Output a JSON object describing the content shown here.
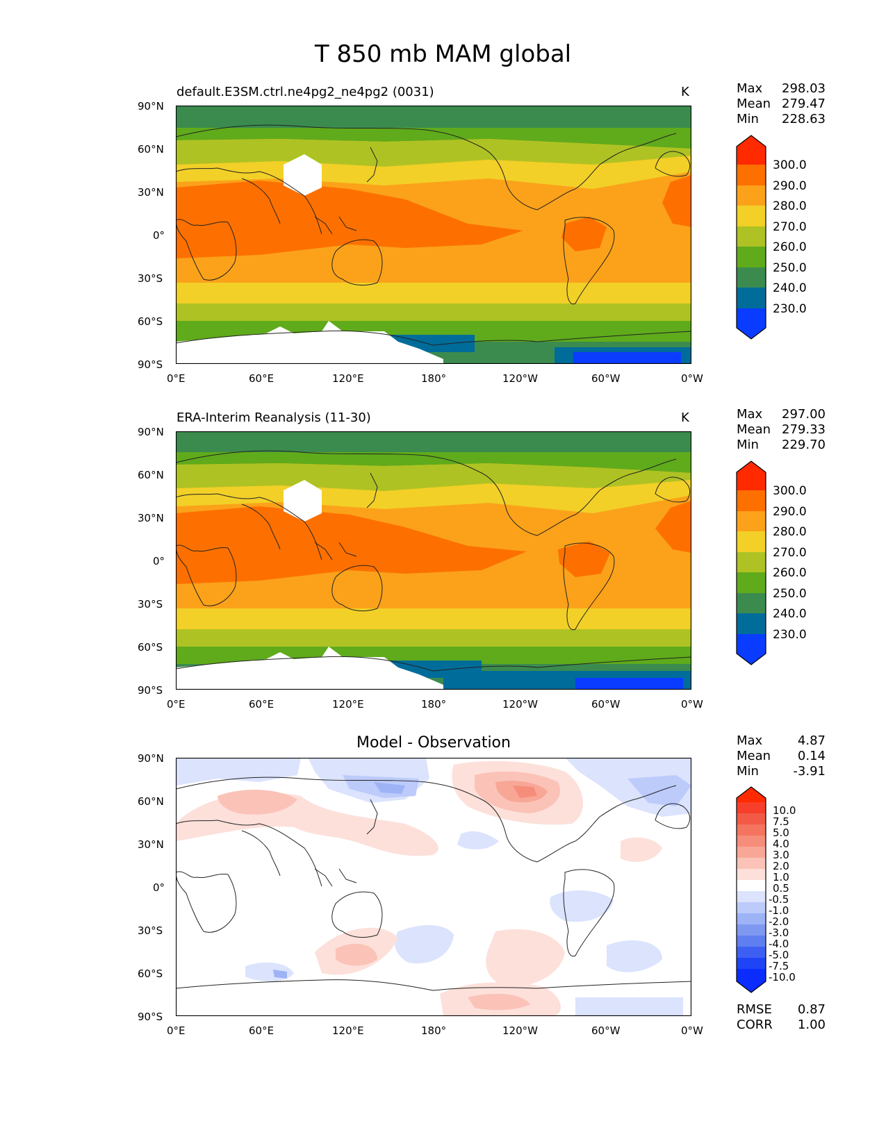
{
  "figure": {
    "title": "T 850 mb MAM global"
  },
  "axes": {
    "lat_ticks": [
      "90°N",
      "60°N",
      "30°N",
      "0°",
      "30°S",
      "60°S",
      "90°S"
    ],
    "lon_ticks": [
      "0°E",
      "60°E",
      "120°E",
      "180°",
      "120°W",
      "60°W",
      "0°W"
    ]
  },
  "panels": [
    {
      "title": "default.E3SM.ctrl.ne4pg2_ne4pg2 (0031)",
      "units": "K",
      "stats": {
        "max_label": "Max",
        "max": "298.03",
        "mean_label": "Mean",
        "mean": "279.47",
        "min_label": "Min",
        "min": "228.63"
      },
      "colorbar": {
        "labels": [
          "300.0",
          "290.0",
          "280.0",
          "270.0",
          "260.0",
          "250.0",
          "240.0",
          "230.0"
        ],
        "colors": [
          "#ff2a00",
          "#fd7000",
          "#fba21a",
          "#f2d028",
          "#aec323",
          "#5fab1b",
          "#3b8b4f",
          "#006c9a",
          "#0a3cff"
        ]
      }
    },
    {
      "title": "ERA-Interim Reanalysis (11-30)",
      "units": "K",
      "stats": {
        "max_label": "Max",
        "max": "297.00",
        "mean_label": "Mean",
        "mean": "279.33",
        "min_label": "Min",
        "min": "229.70"
      },
      "colorbar": {
        "labels": [
          "300.0",
          "290.0",
          "280.0",
          "270.0",
          "260.0",
          "250.0",
          "240.0",
          "230.0"
        ],
        "colors": [
          "#ff2a00",
          "#fd7000",
          "#fba21a",
          "#f2d028",
          "#aec323",
          "#5fab1b",
          "#3b8b4f",
          "#006c9a",
          "#0a3cff"
        ]
      }
    },
    {
      "title": "Model - Observation",
      "stats": {
        "max_label": "Max",
        "max": "4.87",
        "mean_label": "Mean",
        "mean": "0.14",
        "min_label": "Min",
        "min": "-3.91"
      },
      "metrics": {
        "rmse_label": "RMSE",
        "rmse": "0.87",
        "corr_label": "CORR",
        "corr": "1.00"
      },
      "colorbar": {
        "labels": [
          "10.0",
          "7.5",
          "5.0",
          "4.0",
          "3.0",
          "2.0",
          "1.0",
          "0.5",
          "-0.5",
          "-1.0",
          "-2.0",
          "-3.0",
          "-4.0",
          "-5.0",
          "-7.5",
          "-10.0"
        ],
        "colors": [
          "#ff2a00",
          "#f73e2a",
          "#f25a45",
          "#f4745f",
          "#f68d7a",
          "#f8a797",
          "#fbc3b8",
          "#fde0da",
          "#ffffff",
          "#dbe3fd",
          "#bccbfa",
          "#9db3f6",
          "#7f99f1",
          "#5f7ef0",
          "#3e60f2",
          "#1f44f6",
          "#0a2cff"
        ]
      }
    }
  ]
}
